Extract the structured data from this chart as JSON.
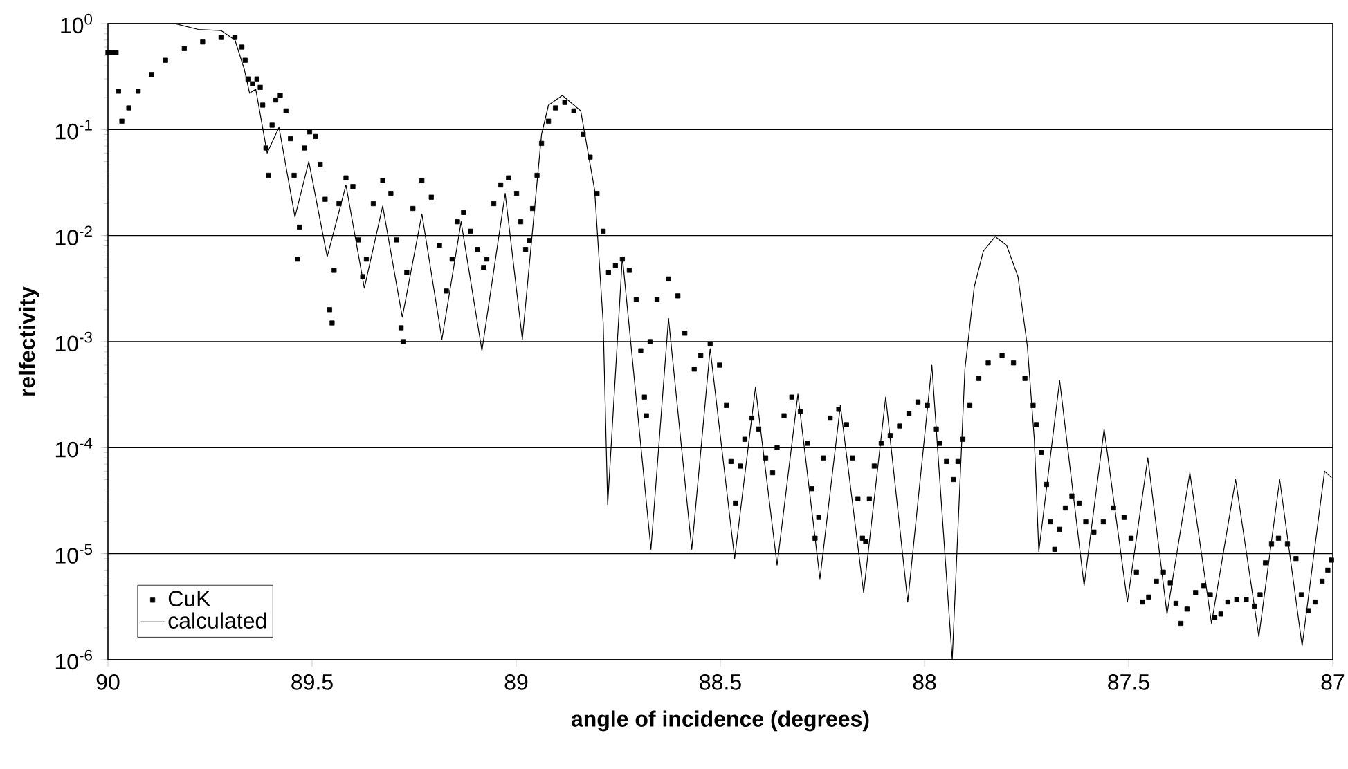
{
  "chart_data": {
    "type": "scatter",
    "xlabel": "angle of incidence (degrees)",
    "ylabel": "relfectivity",
    "xlim": [
      90,
      87
    ],
    "xticks": [
      90,
      89.5,
      89,
      88.5,
      88,
      87.5,
      87
    ],
    "ylim": [
      1e-06,
      1
    ],
    "yticks": [
      {
        "value": 1e-06,
        "label": "10$^{-6}$"
      },
      {
        "value": 1e-05,
        "label": "10$^{-5}$"
      },
      {
        "value": 0.0001,
        "label": "10$^{-4}$"
      },
      {
        "value": 0.001,
        "label": "10$^{-3}$"
      },
      {
        "value": 0.01,
        "label": "10$^{-2}$"
      },
      {
        "value": 0.1,
        "label": "10$^{-1}$"
      },
      {
        "value": 1,
        "label": "10$^{0}$"
      }
    ],
    "log": "y",
    "grid": "y",
    "legend": "bottom left",
    "series": [
      {
        "name": "CuK",
        "marker": "square",
        "color": "#000000",
        "x": [
          90.0,
          89.99,
          89.98,
          89.974,
          89.966,
          89.949,
          89.926,
          89.893,
          89.859,
          89.813,
          89.768,
          89.723,
          89.689,
          89.672,
          89.664,
          89.657,
          89.646,
          89.635,
          89.627,
          89.621,
          89.613,
          89.607,
          89.598,
          89.589,
          89.578,
          89.564,
          89.553,
          89.544,
          89.536,
          89.531,
          89.519,
          89.506,
          89.491,
          89.48,
          89.468,
          89.457,
          89.451,
          89.446,
          89.434,
          89.417,
          89.4,
          89.386,
          89.376,
          89.367,
          89.35,
          89.327,
          89.307,
          89.293,
          89.282,
          89.277,
          89.268,
          89.253,
          89.231,
          89.208,
          89.188,
          89.171,
          89.157,
          89.144,
          89.129,
          89.112,
          89.095,
          89.08,
          89.072,
          89.055,
          89.038,
          89.019,
          88.999,
          88.989,
          88.977,
          88.968,
          88.96,
          88.949,
          88.938,
          88.921,
          88.904,
          88.881,
          88.859,
          88.836,
          88.819,
          88.802,
          88.787,
          88.774,
          88.757,
          88.74,
          88.723,
          88.706,
          88.695,
          88.686,
          88.681,
          88.672,
          88.655,
          88.627,
          88.604,
          88.587,
          88.564,
          88.548,
          88.525,
          88.502,
          88.485,
          88.474,
          88.463,
          88.451,
          88.44,
          88.423,
          88.406,
          88.389,
          88.372,
          88.361,
          88.344,
          88.325,
          88.304,
          88.287,
          88.276,
          88.268,
          88.259,
          88.248,
          88.231,
          88.21,
          88.191,
          88.176,
          88.163,
          88.152,
          88.144,
          88.135,
          88.123,
          88.106,
          88.084,
          88.061,
          88.038,
          88.016,
          87.993,
          87.971,
          87.963,
          87.946,
          87.929,
          87.918,
          87.906,
          87.889,
          87.867,
          87.844,
          87.81,
          87.782,
          87.754,
          87.734,
          87.726,
          87.714,
          87.701,
          87.692,
          87.681,
          87.669,
          87.655,
          87.639,
          87.621,
          87.605,
          87.585,
          87.562,
          87.537,
          87.511,
          87.494,
          87.481,
          87.466,
          87.451,
          87.432,
          87.415,
          87.398,
          87.384,
          87.372,
          87.357,
          87.336,
          87.316,
          87.3,
          87.289,
          87.274,
          87.257,
          87.235,
          87.212,
          87.192,
          87.178,
          87.165,
          87.15,
          87.133,
          87.111,
          87.09,
          87.077,
          87.06,
          87.043,
          87.026,
          87.012,
          87.003
        ],
        "values": [
          0.53,
          0.53,
          0.53,
          0.23,
          0.12,
          0.16,
          0.23,
          0.33,
          0.45,
          0.58,
          0.67,
          0.74,
          0.74,
          0.6,
          0.45,
          0.3,
          0.27,
          0.3,
          0.25,
          0.17,
          0.067,
          0.037,
          0.11,
          0.19,
          0.21,
          0.15,
          0.082,
          0.037,
          0.006,
          0.012,
          0.067,
          0.095,
          0.086,
          0.047,
          0.022,
          0.002,
          0.0015,
          0.0047,
          0.02,
          0.035,
          0.029,
          0.0091,
          0.0041,
          0.006,
          0.02,
          0.033,
          0.025,
          0.0091,
          0.00135,
          0.001,
          0.0045,
          0.018,
          0.033,
          0.023,
          0.0081,
          0.003,
          0.006,
          0.0135,
          0.0165,
          0.011,
          0.0074,
          0.005,
          0.006,
          0.02,
          0.03,
          0.035,
          0.025,
          0.0135,
          0.0074,
          0.009,
          0.018,
          0.037,
          0.074,
          0.12,
          0.16,
          0.18,
          0.15,
          0.09,
          0.055,
          0.025,
          0.011,
          0.0045,
          0.0052,
          0.006,
          0.0047,
          0.0025,
          0.00082,
          0.0003,
          0.0002,
          0.001,
          0.0025,
          0.0039,
          0.0027,
          0.0012,
          0.00055,
          0.00074,
          0.00095,
          0.0006,
          0.00025,
          7.4e-05,
          3e-05,
          6.7e-05,
          0.00012,
          0.00019,
          0.00015,
          8e-05,
          5.8e-05,
          0.0001,
          0.0002,
          0.0003,
          0.00022,
          0.00011,
          4.1e-05,
          1.4e-05,
          2.2e-05,
          8e-05,
          0.00019,
          0.00023,
          0.000165,
          8e-05,
          3.3e-05,
          1.4e-05,
          1.3e-05,
          3.3e-05,
          6.7e-05,
          0.00011,
          0.00013,
          0.00016,
          0.00021,
          0.00027,
          0.00025,
          0.00015,
          0.00011,
          7.4e-05,
          5e-05,
          7.4e-05,
          0.00012,
          0.00025,
          0.00045,
          0.00063,
          0.00074,
          0.00063,
          0.00045,
          0.00025,
          0.000165,
          9e-05,
          4.5e-05,
          2e-05,
          1.1e-05,
          1.7e-05,
          2.7e-05,
          3.5e-05,
          3e-05,
          2e-05,
          1.6e-05,
          2e-05,
          2.7e-05,
          2.2e-05,
          1.4e-05,
          6.7e-06,
          3.5e-06,
          3.9e-06,
          5.5e-06,
          6.7e-06,
          5.3e-06,
          3.4e-06,
          2.2e-06,
          3e-06,
          4.3e-06,
          5e-06,
          4.1e-06,
          2.5e-06,
          2.7e-06,
          3.5e-06,
          3.7e-06,
          3.7e-06,
          3.2e-06,
          4.1e-06,
          8.2e-06,
          1.23e-05,
          1.4e-05,
          1.23e-05,
          9e-06,
          4.1e-06,
          2.9e-06,
          3.5e-06,
          5.5e-06,
          7e-06,
          8.7e-06
        ]
      },
      {
        "name": "calculated",
        "type": "line",
        "marker": "none",
        "line_style": "solid",
        "color": "#000000",
        "x": [
          90.0,
          89.836,
          89.779,
          89.723,
          89.689,
          89.666,
          89.653,
          89.638,
          89.61,
          89.581,
          89.542,
          89.508,
          89.463,
          89.417,
          89.372,
          89.327,
          89.279,
          89.231,
          89.182,
          89.135,
          89.084,
          89.027,
          88.985,
          88.938,
          88.921,
          88.887,
          88.842,
          88.808,
          88.787,
          88.776,
          88.74,
          88.67,
          88.627,
          88.57,
          88.525,
          88.465,
          88.414,
          88.361,
          88.31,
          88.256,
          88.206,
          88.149,
          88.095,
          88.041,
          87.982,
          87.932,
          87.901,
          87.878,
          87.856,
          87.827,
          87.799,
          87.771,
          87.748,
          87.731,
          87.72,
          87.669,
          87.609,
          87.56,
          87.503,
          87.453,
          87.406,
          87.35,
          87.297,
          87.238,
          87.181,
          87.13,
          87.075,
          87.02,
          87.003
        ],
        "values": [
          1.0,
          1.0,
          0.88,
          0.86,
          0.7,
          0.37,
          0.22,
          0.24,
          0.06,
          0.105,
          0.015,
          0.05,
          0.0063,
          0.03,
          0.0032,
          0.019,
          0.0017,
          0.016,
          0.00105,
          0.0135,
          0.00082,
          0.025,
          0.00105,
          0.09,
          0.17,
          0.21,
          0.15,
          0.027,
          0.0015,
          2.9e-05,
          0.0063,
          1.1e-05,
          0.00166,
          1.1e-05,
          0.00086,
          9e-06,
          0.00037,
          7.8e-06,
          0.00032,
          5.8e-06,
          0.00025,
          4.3e-06,
          0.0003,
          3.5e-06,
          0.0006,
          1e-06,
          0.00055,
          0.0033,
          0.0071,
          0.0098,
          0.0081,
          0.0041,
          0.0009,
          0.00012,
          1.05e-05,
          0.00043,
          5e-06,
          0.00015,
          3.5e-06,
          8e-05,
          2.7e-06,
          5.8e-05,
          2.2e-06,
          5e-05,
          1.65e-06,
          5e-05,
          1.35e-06,
          6e-05,
          5.2e-05
        ]
      }
    ]
  }
}
